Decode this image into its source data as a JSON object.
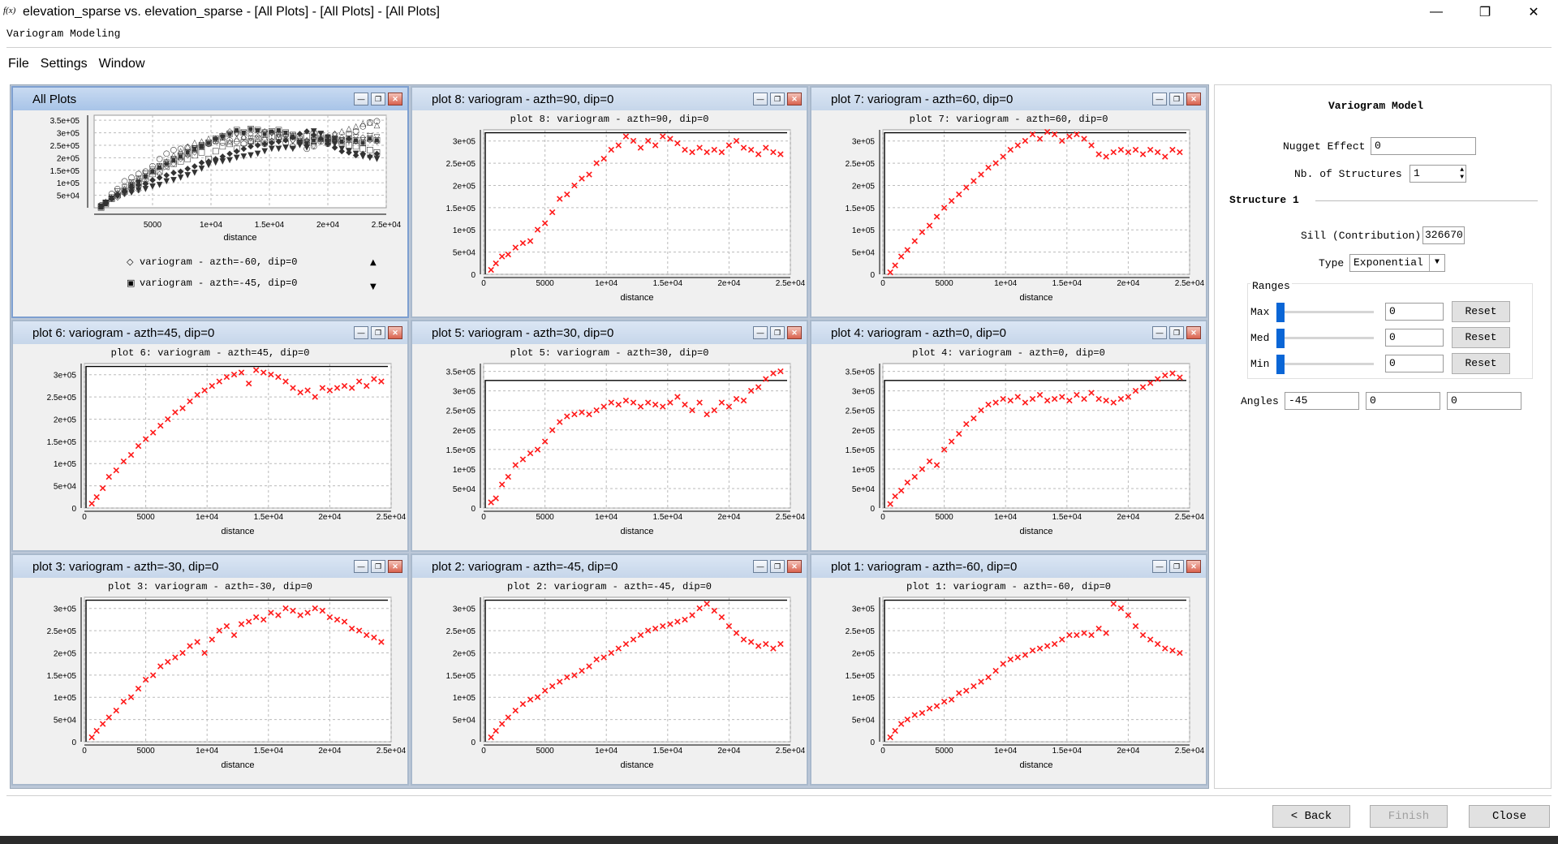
{
  "window": {
    "title": "elevation_sparse vs. elevation_sparse - [All Plots] - [All Plots] - [All Plots]",
    "icon_text": "f(x)",
    "minimize": "—",
    "maximize": "❐",
    "close": "✕"
  },
  "subtitle": "Variogram Modeling",
  "menu": [
    "File",
    "Settings",
    "Window"
  ],
  "all_plots": {
    "title": "All Plots",
    "xlabel": "distance",
    "yticks": [
      "3.5e+05",
      "3e+05",
      "2.5e+05",
      "2e+05",
      "1.5e+05",
      "1e+05",
      "5e+04"
    ],
    "xticks": [
      "5000",
      "1e+04",
      "1.5e+04",
      "2e+04",
      "2.5e+04"
    ],
    "legend": [
      {
        "marker": "◇",
        "label": "variogram - azth=-60, dip=0"
      },
      {
        "marker": "▣",
        "label": "variogram - azth=-45, dip=0"
      }
    ]
  },
  "plots": [
    {
      "id": "plot8",
      "window_title": "plot 8: variogram - azth=90, dip=0",
      "title": "plot 8:  variogram - azth=90, dip=0",
      "xlabel": "distance",
      "ymax": 325000,
      "sill": 326670
    },
    {
      "id": "plot7",
      "window_title": "plot 7: variogram - azth=60, dip=0",
      "title": "plot 7:  variogram - azth=60, dip=0",
      "xlabel": "distance",
      "ymax": 325000,
      "sill": 326670
    },
    {
      "id": "plot6",
      "window_title": "plot 6: variogram - azth=45, dip=0",
      "title": "plot 6:  variogram - azth=45, dip=0",
      "xlabel": "distance",
      "ymax": 325000,
      "sill": 326670
    },
    {
      "id": "plot5",
      "window_title": "plot 5: variogram - azth=30, dip=0",
      "title": "plot 5:  variogram - azth=30, dip=0",
      "xlabel": "distance",
      "ymax": 370000,
      "sill": 326670
    },
    {
      "id": "plot4",
      "window_title": "plot 4: variogram - azth=0, dip=0",
      "title": "plot 4:  variogram - azth=0, dip=0",
      "xlabel": "distance",
      "ymax": 370000,
      "sill": 326670
    },
    {
      "id": "plot3",
      "window_title": "plot 3: variogram - azth=-30, dip=0",
      "title": "plot 3:  variogram - azth=-30, dip=0",
      "xlabel": "distance",
      "ymax": 325000,
      "sill": 326670
    },
    {
      "id": "plot2",
      "window_title": "plot 2: variogram - azth=-45, dip=0",
      "title": "plot 2:  variogram - azth=-45, dip=0",
      "xlabel": "distance",
      "ymax": 325000,
      "sill": 326670
    },
    {
      "id": "plot1",
      "window_title": "plot 1: variogram - azth=-60, dip=0",
      "title": "plot 1:  variogram - azth=-60, dip=0",
      "xlabel": "distance",
      "ymax": 325000,
      "sill": 326670
    }
  ],
  "chart_data": [
    {
      "type": "scatter",
      "title": "plot 8:  variogram - azth=90, dip=0",
      "xlabel": "distance",
      "xlim": [
        0,
        25000
      ],
      "xticks": [
        "0",
        "5000",
        "1e+04",
        "1.5e+04",
        "2e+04",
        "2.5e+04"
      ],
      "yticks": [
        "0",
        "5e+04",
        "1e+05",
        "1.5e+05",
        "2e+05",
        "2.5e+05",
        "3e+05"
      ],
      "sill": 326670,
      "x": [
        600,
        1000,
        1500,
        2000,
        2600,
        3200,
        3800,
        4400,
        5000,
        5600,
        6200,
        6800,
        7400,
        8000,
        8600,
        9200,
        9800,
        10400,
        11000,
        11600,
        12200,
        12800,
        13400,
        14000,
        14600,
        15200,
        15800,
        16400,
        17000,
        17600,
        18200,
        18800,
        19400,
        20000,
        20600,
        21200,
        21800,
        22400,
        23000,
        23600,
        24200
      ],
      "y": [
        10000,
        25000,
        40000,
        45000,
        60000,
        70000,
        75000,
        100000,
        115000,
        140000,
        170000,
        180000,
        200000,
        215000,
        225000,
        250000,
        260000,
        280000,
        290000,
        310000,
        300000,
        285000,
        300000,
        290000,
        310000,
        305000,
        295000,
        280000,
        275000,
        285000,
        275000,
        280000,
        275000,
        290000,
        300000,
        285000,
        280000,
        270000,
        285000,
        275000,
        270000
      ]
    },
    {
      "type": "scatter",
      "title": "plot 7:  variogram - azth=60, dip=0",
      "xlabel": "distance",
      "xlim": [
        0,
        25000
      ],
      "xticks": [
        "0",
        "5000",
        "1e+04",
        "1.5e+04",
        "2e+04",
        "2.5e+04"
      ],
      "yticks": [
        "0",
        "5e+04",
        "1e+05",
        "1.5e+05",
        "2e+05",
        "2.5e+05",
        "3e+05"
      ],
      "sill": 326670,
      "x": [
        600,
        1000,
        1500,
        2000,
        2600,
        3200,
        3800,
        4400,
        5000,
        5600,
        6200,
        6800,
        7400,
        8000,
        8600,
        9200,
        9800,
        10400,
        11000,
        11600,
        12200,
        12800,
        13400,
        14000,
        14600,
        15200,
        15800,
        16400,
        17000,
        17600,
        18200,
        18800,
        19400,
        20000,
        20600,
        21200,
        21800,
        22400,
        23000,
        23600,
        24200
      ],
      "y": [
        5000,
        20000,
        40000,
        55000,
        75000,
        95000,
        110000,
        130000,
        150000,
        165000,
        180000,
        195000,
        210000,
        225000,
        240000,
        250000,
        265000,
        280000,
        290000,
        300000,
        315000,
        305000,
        320000,
        315000,
        300000,
        310000,
        315000,
        305000,
        290000,
        270000,
        265000,
        275000,
        280000,
        275000,
        280000,
        270000,
        280000,
        275000,
        265000,
        280000,
        275000
      ]
    },
    {
      "type": "scatter",
      "title": "plot 6:  variogram - azth=45, dip=0",
      "xlabel": "distance",
      "xlim": [
        0,
        25000
      ],
      "xticks": [
        "0",
        "5000",
        "1e+04",
        "1.5e+04",
        "2e+04",
        "2.5e+04"
      ],
      "yticks": [
        "0",
        "5e+04",
        "1e+05",
        "1.5e+05",
        "2e+05",
        "2.5e+05",
        "3e+05"
      ],
      "sill": 326670,
      "x": [
        600,
        1000,
        1500,
        2000,
        2600,
        3200,
        3800,
        4400,
        5000,
        5600,
        6200,
        6800,
        7400,
        8000,
        8600,
        9200,
        9800,
        10400,
        11000,
        11600,
        12200,
        12800,
        13400,
        14000,
        14600,
        15200,
        15800,
        16400,
        17000,
        17600,
        18200,
        18800,
        19400,
        20000,
        20600,
        21200,
        21800,
        22400,
        23000,
        23600,
        24200
      ],
      "y": [
        10000,
        25000,
        45000,
        70000,
        85000,
        105000,
        120000,
        140000,
        155000,
        170000,
        185000,
        200000,
        215000,
        225000,
        240000,
        255000,
        265000,
        275000,
        285000,
        295000,
        300000,
        305000,
        280000,
        310000,
        305000,
        300000,
        295000,
        285000,
        270000,
        260000,
        265000,
        250000,
        270000,
        265000,
        270000,
        275000,
        270000,
        285000,
        275000,
        290000,
        285000
      ]
    },
    {
      "type": "scatter",
      "title": "plot 5:  variogram - azth=30, dip=0",
      "xlabel": "distance",
      "xlim": [
        0,
        25000
      ],
      "xticks": [
        "0",
        "5000",
        "1e+04",
        "1.5e+04",
        "2e+04",
        "2.5e+04"
      ],
      "yticks": [
        "0",
        "5e+04",
        "1e+05",
        "1.5e+05",
        "2e+05",
        "2.5e+05",
        "3e+05",
        "3.5e+05"
      ],
      "sill": 326670,
      "x": [
        600,
        1000,
        1500,
        2000,
        2600,
        3200,
        3800,
        4400,
        5000,
        5600,
        6200,
        6800,
        7400,
        8000,
        8600,
        9200,
        9800,
        10400,
        11000,
        11600,
        12200,
        12800,
        13400,
        14000,
        14600,
        15200,
        15800,
        16400,
        17000,
        17600,
        18200,
        18800,
        19400,
        20000,
        20600,
        21200,
        21800,
        22400,
        23000,
        23600,
        24200
      ],
      "y": [
        15000,
        25000,
        60000,
        80000,
        110000,
        125000,
        140000,
        150000,
        170000,
        200000,
        220000,
        235000,
        240000,
        245000,
        240000,
        250000,
        260000,
        270000,
        265000,
        275000,
        270000,
        260000,
        270000,
        265000,
        260000,
        270000,
        285000,
        265000,
        250000,
        270000,
        240000,
        250000,
        270000,
        260000,
        280000,
        275000,
        300000,
        310000,
        330000,
        345000,
        350000
      ]
    },
    {
      "type": "scatter",
      "title": "plot 4:  variogram - azth=0, dip=0",
      "xlabel": "distance",
      "xlim": [
        0,
        25000
      ],
      "xticks": [
        "0",
        "5000",
        "1e+04",
        "1.5e+04",
        "2e+04",
        "2.5e+04"
      ],
      "yticks": [
        "0",
        "5e+04",
        "1e+05",
        "1.5e+05",
        "2e+05",
        "2.5e+05",
        "3e+05",
        "3.5e+05"
      ],
      "sill": 326670,
      "x": [
        600,
        1000,
        1500,
        2000,
        2600,
        3200,
        3800,
        4400,
        5000,
        5600,
        6200,
        6800,
        7400,
        8000,
        8600,
        9200,
        9800,
        10400,
        11000,
        11600,
        12200,
        12800,
        13400,
        14000,
        14600,
        15200,
        15800,
        16400,
        17000,
        17600,
        18200,
        18800,
        19400,
        20000,
        20600,
        21200,
        21800,
        22400,
        23000,
        23600,
        24200
      ],
      "y": [
        10000,
        30000,
        45000,
        65000,
        80000,
        100000,
        120000,
        110000,
        150000,
        170000,
        190000,
        215000,
        230000,
        250000,
        265000,
        270000,
        280000,
        275000,
        285000,
        270000,
        280000,
        290000,
        275000,
        280000,
        285000,
        275000,
        290000,
        280000,
        295000,
        280000,
        275000,
        270000,
        280000,
        285000,
        300000,
        310000,
        320000,
        330000,
        340000,
        345000,
        335000
      ]
    },
    {
      "type": "scatter",
      "title": "plot 3:  variogram - azth=-30, dip=0",
      "xlabel": "distance",
      "xlim": [
        0,
        25000
      ],
      "xticks": [
        "0",
        "5000",
        "1e+04",
        "1.5e+04",
        "2e+04",
        "2.5e+04"
      ],
      "yticks": [
        "0",
        "5e+04",
        "1e+05",
        "1.5e+05",
        "2e+05",
        "2.5e+05",
        "3e+05"
      ],
      "sill": 326670,
      "x": [
        600,
        1000,
        1500,
        2000,
        2600,
        3200,
        3800,
        4400,
        5000,
        5600,
        6200,
        6800,
        7400,
        8000,
        8600,
        9200,
        9800,
        10400,
        11000,
        11600,
        12200,
        12800,
        13400,
        14000,
        14600,
        15200,
        15800,
        16400,
        17000,
        17600,
        18200,
        18800,
        19400,
        20000,
        20600,
        21200,
        21800,
        22400,
        23000,
        23600,
        24200
      ],
      "y": [
        10000,
        25000,
        40000,
        55000,
        70000,
        90000,
        100000,
        120000,
        140000,
        150000,
        170000,
        180000,
        190000,
        200000,
        215000,
        225000,
        200000,
        230000,
        250000,
        260000,
        240000,
        265000,
        270000,
        280000,
        275000,
        290000,
        285000,
        300000,
        295000,
        285000,
        290000,
        300000,
        295000,
        280000,
        275000,
        270000,
        255000,
        250000,
        240000,
        235000,
        225000
      ]
    },
    {
      "type": "scatter",
      "title": "plot 2:  variogram - azth=-45, dip=0",
      "xlabel": "distance",
      "xlim": [
        0,
        25000
      ],
      "xticks": [
        "0",
        "5000",
        "1e+04",
        "1.5e+04",
        "2e+04",
        "2.5e+04"
      ],
      "yticks": [
        "0",
        "5e+04",
        "1e+05",
        "1.5e+05",
        "2e+05",
        "2.5e+05",
        "3e+05"
      ],
      "sill": 326670,
      "x": [
        600,
        1000,
        1500,
        2000,
        2600,
        3200,
        3800,
        4400,
        5000,
        5600,
        6200,
        6800,
        7400,
        8000,
        8600,
        9200,
        9800,
        10400,
        11000,
        11600,
        12200,
        12800,
        13400,
        14000,
        14600,
        15200,
        15800,
        16400,
        17000,
        17600,
        18200,
        18800,
        19400,
        20000,
        20600,
        21200,
        21800,
        22400,
        23000,
        23600,
        24200
      ],
      "y": [
        10000,
        25000,
        40000,
        55000,
        70000,
        85000,
        95000,
        100000,
        115000,
        125000,
        135000,
        145000,
        150000,
        160000,
        170000,
        185000,
        190000,
        200000,
        210000,
        220000,
        230000,
        240000,
        250000,
        255000,
        260000,
        265000,
        270000,
        275000,
        285000,
        300000,
        310000,
        295000,
        280000,
        260000,
        245000,
        230000,
        225000,
        215000,
        220000,
        210000,
        220000
      ]
    },
    {
      "type": "scatter",
      "title": "plot 1:  variogram - azth=-60, dip=0",
      "xlabel": "distance",
      "xlim": [
        0,
        25000
      ],
      "xticks": [
        "0",
        "5000",
        "1e+04",
        "1.5e+04",
        "2e+04",
        "2.5e+04"
      ],
      "yticks": [
        "0",
        "5e+04",
        "1e+05",
        "1.5e+05",
        "2e+05",
        "2.5e+05",
        "3e+05"
      ],
      "sill": 326670,
      "x": [
        600,
        1000,
        1500,
        2000,
        2600,
        3200,
        3800,
        4400,
        5000,
        5600,
        6200,
        6800,
        7400,
        8000,
        8600,
        9200,
        9800,
        10400,
        11000,
        11600,
        12200,
        12800,
        13400,
        14000,
        14600,
        15200,
        15800,
        16400,
        17000,
        17600,
        18200,
        18800,
        19400,
        20000,
        20600,
        21200,
        21800,
        22400,
        23000,
        23600,
        24200
      ],
      "y": [
        10000,
        25000,
        40000,
        50000,
        60000,
        65000,
        75000,
        80000,
        90000,
        95000,
        110000,
        115000,
        125000,
        135000,
        145000,
        160000,
        175000,
        185000,
        190000,
        195000,
        205000,
        210000,
        215000,
        220000,
        230000,
        240000,
        240000,
        245000,
        240000,
        255000,
        245000,
        310000,
        300000,
        285000,
        260000,
        240000,
        230000,
        220000,
        210000,
        205000,
        200000
      ]
    }
  ],
  "model_panel": {
    "title": "Variogram Model",
    "nugget_label": "Nugget Effect",
    "nugget_value": "0",
    "nb_structures_label": "Nb. of Structures",
    "nb_structures_value": "1",
    "structure_label": "Structure 1",
    "sill_label": "Sill (Contribution)",
    "sill_value": "326670",
    "type_label": "Type",
    "type_value": "Exponential",
    "ranges_label": "Ranges",
    "ranges": [
      {
        "label": "Max",
        "value": "0",
        "reset": "Reset"
      },
      {
        "label": "Med",
        "value": "0",
        "reset": "Reset"
      },
      {
        "label": "Min",
        "value": "0",
        "reset": "Reset"
      }
    ],
    "angles_label": "Angles",
    "angles": [
      "-45",
      "0",
      "0"
    ]
  },
  "footer": {
    "back": "< Back",
    "finish": "Finish",
    "close": "Close"
  },
  "colors": {
    "points": "#ff1a1a",
    "sill_line": "#000000"
  }
}
